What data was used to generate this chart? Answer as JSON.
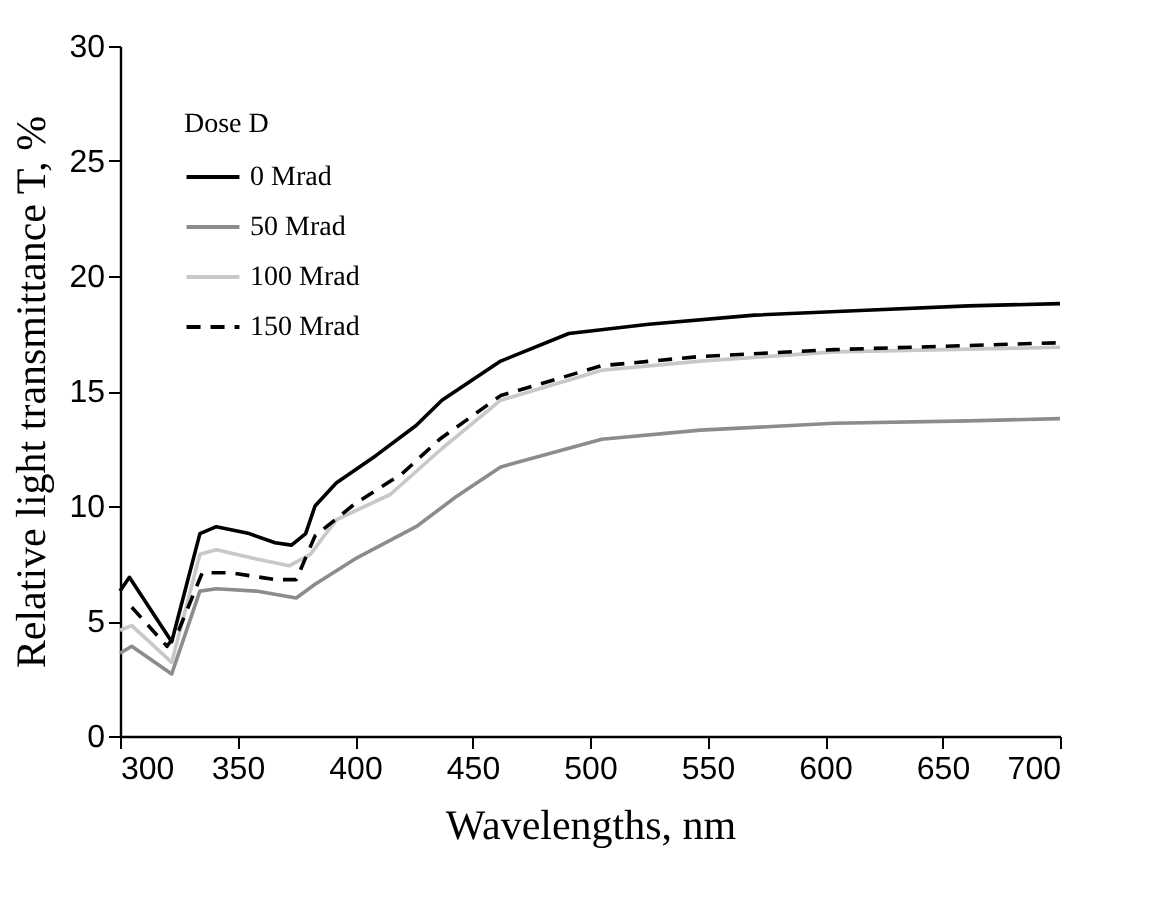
{
  "chart_data": {
    "type": "line",
    "xlabel": "Wavelengths, nm",
    "ylabel": "Relative light transmittance T, %",
    "legend_title": "Dose D",
    "xlim": [
      300,
      700
    ],
    "xticks": [
      300,
      350,
      400,
      450,
      500,
      550,
      600,
      650,
      700
    ],
    "ylim": [
      0,
      30
    ],
    "yticks": [
      0,
      5,
      10,
      15,
      20,
      25,
      30
    ],
    "grid": false,
    "legend": "top left",
    "marker": "none",
    "series": [
      {
        "name": "0 Mrad",
        "color": "#000000",
        "line_style": "solid",
        "x": [
          300,
          304,
          322,
          334,
          341,
          355,
          366,
          373,
          379,
          383,
          392,
          409,
          426,
          437,
          462,
          491,
          525,
          570,
          615,
          661,
          700
        ],
        "values": [
          6.3,
          6.9,
          4.1,
          8.8,
          9.1,
          8.8,
          8.4,
          8.3,
          8.8,
          10.0,
          11.0,
          12.2,
          13.5,
          14.6,
          16.3,
          17.5,
          17.9,
          18.3,
          18.5,
          18.7,
          18.8
        ]
      },
      {
        "name": "50 Mrad",
        "color": "#8c8c8c",
        "line_style": "solid",
        "x": [
          300,
          305,
          322,
          334,
          341,
          358,
          375,
          383,
          400,
          426,
          443,
          462,
          505,
          547,
          604,
          661,
          700
        ],
        "values": [
          3.6,
          3.9,
          2.7,
          6.3,
          6.4,
          6.3,
          6.0,
          6.6,
          7.7,
          9.1,
          10.4,
          11.7,
          12.9,
          13.3,
          13.6,
          13.7,
          13.8
        ]
      },
      {
        "name": "100 Mrad",
        "color": "#c8c8c8",
        "line_style": "solid",
        "x": [
          300,
          305,
          322,
          334,
          341,
          358,
          372,
          381,
          392,
          415,
          437,
          462,
          505,
          547,
          604,
          700
        ],
        "values": [
          4.6,
          4.8,
          3.2,
          7.9,
          8.1,
          7.7,
          7.4,
          7.9,
          9.4,
          10.5,
          12.5,
          14.6,
          15.9,
          16.3,
          16.7,
          16.9
        ]
      },
      {
        "name": "150 Mrad",
        "color": "#000000",
        "line_style": "dashed",
        "x": [
          305,
          320,
          325,
          335,
          347,
          366,
          375,
          383,
          400,
          420,
          436,
          462,
          505,
          547,
          604,
          700
        ],
        "values": [
          5.6,
          3.9,
          4.6,
          7.1,
          7.1,
          6.8,
          6.8,
          8.7,
          10.1,
          11.4,
          12.9,
          14.8,
          16.1,
          16.5,
          16.8,
          17.1
        ]
      }
    ]
  }
}
